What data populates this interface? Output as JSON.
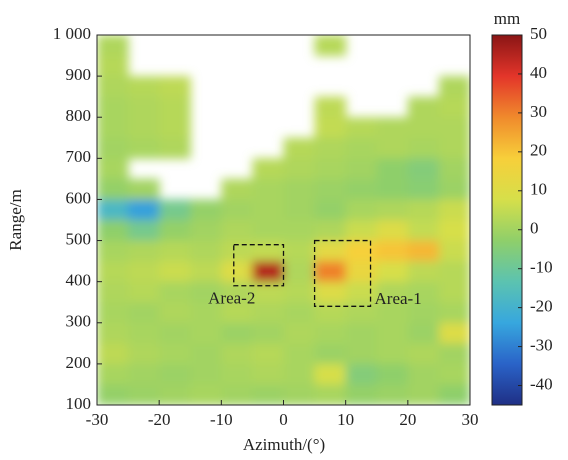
{
  "chart_data": {
    "type": "heatmap",
    "xlabel": "Azimuth/(°)",
    "ylabel": "Range/m",
    "xlim": [
      -30,
      30
    ],
    "ylim": [
      100,
      1000
    ],
    "xticks": [
      -30,
      -20,
      -10,
      0,
      10,
      20,
      30
    ],
    "yticks": [
      100,
      200,
      300,
      400,
      500,
      600,
      700,
      800,
      900,
      {
        "value": 1000,
        "label": "1 000"
      }
    ],
    "xbins": [
      -30,
      -25,
      -20,
      -15,
      -10,
      -5,
      0,
      5,
      10,
      15,
      20,
      25,
      30
    ],
    "ybins": [
      1000,
      950,
      900,
      850,
      800,
      750,
      700,
      650,
      600,
      550,
      500,
      450,
      400,
      350,
      300,
      250,
      200,
      150,
      100
    ],
    "values": [
      [
        2,
        null,
        null,
        null,
        null,
        null,
        null,
        3,
        null,
        null,
        null,
        null
      ],
      [
        3,
        null,
        null,
        null,
        null,
        null,
        null,
        null,
        null,
        null,
        null,
        null
      ],
      [
        2,
        3,
        4,
        null,
        null,
        null,
        null,
        null,
        null,
        null,
        null,
        2
      ],
      [
        1,
        2,
        3,
        null,
        null,
        null,
        null,
        4,
        null,
        null,
        2,
        3
      ],
      [
        1,
        2,
        3,
        null,
        null,
        null,
        null,
        5,
        3,
        2,
        2,
        2
      ],
      [
        0,
        1,
        2,
        null,
        null,
        null,
        3,
        2,
        1,
        2,
        1,
        2
      ],
      [
        1,
        null,
        null,
        null,
        null,
        3,
        2,
        1,
        0,
        -3,
        -5,
        0
      ],
      [
        -2,
        0,
        null,
        null,
        2,
        1,
        0,
        -1,
        -2,
        -3,
        -4,
        -1
      ],
      [
        -18,
        -25,
        -8,
        -2,
        0,
        1,
        0,
        -2,
        1,
        2,
        3,
        6
      ],
      [
        -3,
        -8,
        -2,
        0,
        2,
        1,
        1,
        2,
        6,
        10,
        5,
        8
      ],
      [
        1,
        2,
        3,
        2,
        4,
        5,
        3,
        12,
        18,
        20,
        22,
        6
      ],
      [
        3,
        4,
        6,
        4,
        10,
        45,
        2,
        30,
        14,
        8,
        4,
        3
      ],
      [
        2,
        3,
        1,
        0,
        2,
        4,
        3,
        10,
        6,
        2,
        1,
        3
      ],
      [
        1,
        0,
        2,
        1,
        3,
        2,
        1,
        3,
        2,
        1,
        0,
        1
      ],
      [
        2,
        1,
        0,
        1,
        -1,
        0,
        2,
        1,
        0,
        1,
        -1,
        10
      ],
      [
        4,
        2,
        1,
        0,
        2,
        3,
        1,
        -1,
        0,
        1,
        2,
        0
      ],
      [
        1,
        0,
        -1,
        0,
        1,
        2,
        1,
        8,
        -5,
        -3,
        0,
        1
      ],
      [
        -2,
        -1,
        0,
        1,
        0,
        -1,
        0,
        1,
        -2,
        -1,
        0,
        -3
      ]
    ],
    "colormap": [
      "#1f2f85",
      "#2a63c8",
      "#37a7de",
      "#5cc3b0",
      "#8fcf6a",
      "#d6df4a",
      "#f7cf3a",
      "#f08a2c",
      "#e3352a",
      "#8a1515"
    ],
    "clim": [
      -45,
      50
    ],
    "cticks": [
      -40,
      -30,
      -20,
      -10,
      0,
      10,
      20,
      30,
      40,
      50
    ],
    "colorbar_label": "mm",
    "annotations": [
      {
        "text": "Area-2",
        "x": [
          -8,
          0
        ],
        "y": [
          390,
          490
        ]
      },
      {
        "text": "Area-1",
        "x": [
          5,
          14
        ],
        "y": [
          340,
          500
        ]
      }
    ]
  }
}
